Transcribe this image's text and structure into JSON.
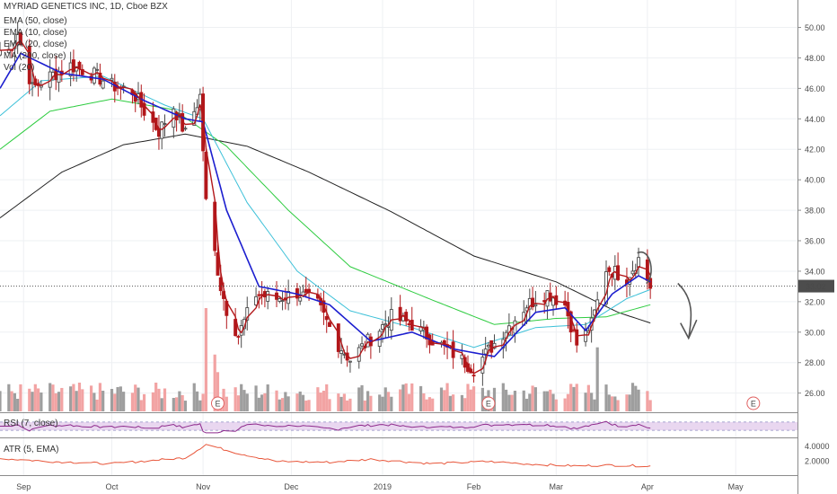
{
  "colors": {
    "up": "#4b4b4b",
    "down": "#b2171a",
    "ema50": "#2ecc40",
    "ema10": "#1c1ecf",
    "ema20": "#3cc0d8",
    "ma200": "#222222",
    "vol_up": "#9e9e9e",
    "vol_down": "#f2a3a3",
    "rsi": "#8e2a8c",
    "atr": "#e8563a",
    "earnings": "#e06060",
    "annotation": "#555555"
  },
  "legend": {
    "title": "MYRIAD GENETICS INC, 1D, Cboe BZX",
    "ema50": "EMA (50, close)",
    "ema10": "EMA (10, close)",
    "ema20": "EMA (20, close)",
    "ma200": "MA (200, close)",
    "vol": "Vol (20)"
  },
  "last_price_label": "33.02",
  "rsi_label": "RSI (7, close)",
  "atr_label": "ATR (5, EMA)",
  "atr_ticks": [
    "4.0000",
    "2.0000"
  ],
  "earnings_marker": "E",
  "chart_data": {
    "type": "candlestick",
    "title": "MYRIAD GENETICS INC, 1D, Cboe BZX",
    "ylim": [
      24.8,
      51.8
    ],
    "y_ticks": [
      "50.00",
      "48.00",
      "46.00",
      "44.00",
      "42.00",
      "40.00",
      "38.00",
      "36.00",
      "34.00",
      "32.00",
      "30.00",
      "28.00",
      "26.00"
    ],
    "x_ticks": [
      "Sep",
      "Oct",
      "Nov",
      "Dec",
      "2019",
      "Feb",
      "Mar",
      "Apr",
      "May"
    ],
    "x_range": [
      "2018-08-24",
      "2019-05-22"
    ],
    "candle_anchors": [
      {
        "date": "2018-08-27",
        "close": 48.5
      },
      {
        "date": "2018-08-30",
        "close": 49.6
      },
      {
        "date": "2018-09-04",
        "close": 46.0
      },
      {
        "date": "2018-09-10",
        "close": 46.8
      },
      {
        "date": "2018-09-17",
        "close": 47.5
      },
      {
        "date": "2018-09-24",
        "close": 47.0
      },
      {
        "date": "2018-10-01",
        "close": 46.2
      },
      {
        "date": "2018-10-08",
        "close": 45.8
      },
      {
        "date": "2018-10-12",
        "close": 44.5
      },
      {
        "date": "2018-10-17",
        "close": 43.2
      },
      {
        "date": "2018-10-22",
        "close": 44.8
      },
      {
        "date": "2018-10-26",
        "close": 43.0
      },
      {
        "date": "2018-10-31",
        "close": 45.5
      },
      {
        "date": "2018-11-02",
        "close": 38.5
      },
      {
        "date": "2018-11-07",
        "close": 33.0
      },
      {
        "date": "2018-11-09",
        "close": 31.5
      },
      {
        "date": "2018-11-13",
        "close": 29.8
      },
      {
        "date": "2018-11-19",
        "close": 32.5
      },
      {
        "date": "2018-11-26",
        "close": 32.2
      },
      {
        "date": "2018-12-03",
        "close": 32.6
      },
      {
        "date": "2018-12-10",
        "close": 31.8
      },
      {
        "date": "2018-12-17",
        "close": 29.2
      },
      {
        "date": "2018-12-21",
        "close": 28.2
      },
      {
        "date": "2018-12-26",
        "close": 29.2
      },
      {
        "date": "2019-01-04",
        "close": 31.0
      },
      {
        "date": "2019-01-11",
        "close": 30.5
      },
      {
        "date": "2019-01-18",
        "close": 29.5
      },
      {
        "date": "2019-01-25",
        "close": 28.6
      },
      {
        "date": "2019-02-01",
        "close": 27.6
      },
      {
        "date": "2019-02-06",
        "close": 28.8
      },
      {
        "date": "2019-02-12",
        "close": 30.2
      },
      {
        "date": "2019-02-19",
        "close": 31.8
      },
      {
        "date": "2019-02-26",
        "close": 32.6
      },
      {
        "date": "2019-03-04",
        "close": 31.8
      },
      {
        "date": "2019-03-08",
        "close": 29.2
      },
      {
        "date": "2019-03-13",
        "close": 30.5
      },
      {
        "date": "2019-03-18",
        "close": 34.2
      },
      {
        "date": "2019-03-25",
        "close": 33.6
      },
      {
        "date": "2019-03-29",
        "close": 34.8
      },
      {
        "date": "2019-04-02",
        "close": 33.0
      }
    ],
    "ema10_anchors": [
      {
        "date": "2018-08-24",
        "value": 46.0
      },
      {
        "date": "2018-08-31",
        "value": 48.3
      },
      {
        "date": "2018-09-14",
        "value": 47.0
      },
      {
        "date": "2018-09-28",
        "value": 46.6
      },
      {
        "date": "2018-10-12",
        "value": 45.2
      },
      {
        "date": "2018-10-26",
        "value": 44.0
      },
      {
        "date": "2018-11-01",
        "value": 43.8
      },
      {
        "date": "2018-11-09",
        "value": 38.0
      },
      {
        "date": "2018-11-20",
        "value": 33.0
      },
      {
        "date": "2018-12-03",
        "value": 32.5
      },
      {
        "date": "2018-12-14",
        "value": 31.8
      },
      {
        "date": "2018-12-28",
        "value": 29.4
      },
      {
        "date": "2019-01-11",
        "value": 30.0
      },
      {
        "date": "2019-01-25",
        "value": 28.9
      },
      {
        "date": "2019-02-08",
        "value": 28.4
      },
      {
        "date": "2019-02-22",
        "value": 31.3
      },
      {
        "date": "2019-03-04",
        "value": 31.6
      },
      {
        "date": "2019-03-11",
        "value": 30.1
      },
      {
        "date": "2019-03-20",
        "value": 32.5
      },
      {
        "date": "2019-03-29",
        "value": 33.7
      },
      {
        "date": "2019-04-02",
        "value": 33.3
      }
    ],
    "ema20_anchors": [
      {
        "date": "2018-08-24",
        "value": 44.2
      },
      {
        "date": "2018-09-07",
        "value": 46.5
      },
      {
        "date": "2018-09-28",
        "value": 46.8
      },
      {
        "date": "2018-10-19",
        "value": 44.9
      },
      {
        "date": "2018-11-01",
        "value": 44.0
      },
      {
        "date": "2018-11-16",
        "value": 38.5
      },
      {
        "date": "2018-12-03",
        "value": 34.0
      },
      {
        "date": "2018-12-21",
        "value": 31.4
      },
      {
        "date": "2019-01-11",
        "value": 30.3
      },
      {
        "date": "2019-02-01",
        "value": 29.0
      },
      {
        "date": "2019-02-22",
        "value": 30.3
      },
      {
        "date": "2019-03-11",
        "value": 30.5
      },
      {
        "date": "2019-03-25",
        "value": 32.2
      },
      {
        "date": "2019-04-02",
        "value": 32.8
      }
    ],
    "ema50_anchors": [
      {
        "date": "2018-08-24",
        "value": 42.0
      },
      {
        "date": "2018-09-10",
        "value": 44.5
      },
      {
        "date": "2018-10-01",
        "value": 45.3
      },
      {
        "date": "2018-10-22",
        "value": 44.6
      },
      {
        "date": "2018-11-09",
        "value": 42.2
      },
      {
        "date": "2018-11-30",
        "value": 38.0
      },
      {
        "date": "2018-12-21",
        "value": 34.3
      },
      {
        "date": "2019-01-18",
        "value": 32.1
      },
      {
        "date": "2019-02-08",
        "value": 30.5
      },
      {
        "date": "2019-03-01",
        "value": 30.9
      },
      {
        "date": "2019-03-18",
        "value": 31.0
      },
      {
        "date": "2019-04-02",
        "value": 31.8
      }
    ],
    "ma200_anchors": [
      {
        "date": "2018-08-24",
        "value": 37.5
      },
      {
        "date": "2018-09-14",
        "value": 40.5
      },
      {
        "date": "2018-10-05",
        "value": 42.3
      },
      {
        "date": "2018-10-26",
        "value": 43.0
      },
      {
        "date": "2018-11-16",
        "value": 42.2
      },
      {
        "date": "2018-12-07",
        "value": 40.5
      },
      {
        "date": "2019-01-04",
        "value": 37.9
      },
      {
        "date": "2019-02-01",
        "value": 35.0
      },
      {
        "date": "2019-03-01",
        "value": 33.3
      },
      {
        "date": "2019-03-22",
        "value": 31.3
      },
      {
        "date": "2019-04-02",
        "value": 30.6
      }
    ],
    "volume_spikes": [
      {
        "date": "2018-11-02",
        "relative": 1.0
      },
      {
        "date": "2018-11-05",
        "relative": 0.55
      },
      {
        "date": "2018-11-06",
        "relative": 0.38
      },
      {
        "date": "2019-03-15",
        "relative": 0.62
      }
    ],
    "earnings_dates": [
      "2018-11-06",
      "2019-02-06",
      "2019-05-07"
    ],
    "rsi_range": [
      0,
      100
    ],
    "atr_range": [
      0.3,
      4.9
    ],
    "atr_anchors": [
      {
        "date": "2018-08-24",
        "value": 2.3
      },
      {
        "date": "2018-09-10",
        "value": 1.9
      },
      {
        "date": "2018-10-01",
        "value": 1.6
      },
      {
        "date": "2018-10-26",
        "value": 2.4
      },
      {
        "date": "2018-11-02",
        "value": 4.2
      },
      {
        "date": "2018-11-12",
        "value": 3.1
      },
      {
        "date": "2018-11-26",
        "value": 1.9
      },
      {
        "date": "2018-12-14",
        "value": 1.8
      },
      {
        "date": "2018-12-28",
        "value": 2.2
      },
      {
        "date": "2019-01-18",
        "value": 1.6
      },
      {
        "date": "2019-02-06",
        "value": 1.9
      },
      {
        "date": "2019-02-22",
        "value": 1.5
      },
      {
        "date": "2019-03-08",
        "value": 1.3
      },
      {
        "date": "2019-03-18",
        "value": 1.4
      },
      {
        "date": "2019-04-02",
        "value": 1.3
      }
    ],
    "grid": true,
    "legend_position": "top-left"
  }
}
